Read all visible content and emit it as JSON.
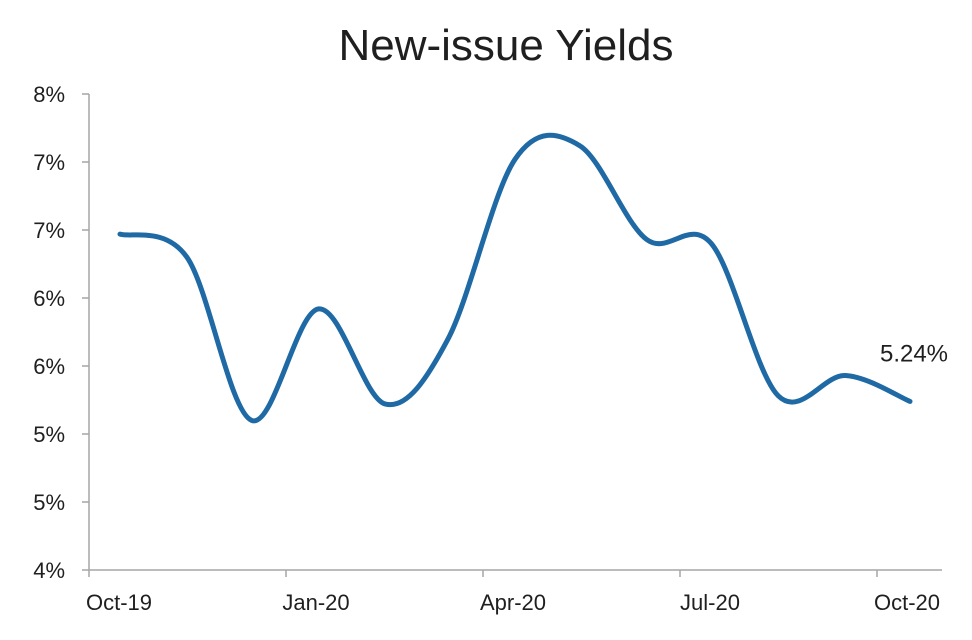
{
  "chart_data": {
    "type": "line",
    "title": "New-issue Yields",
    "xlabel": "",
    "ylabel": "",
    "x_tick_labels": [
      "Oct-19",
      "Jan-20",
      "Apr-20",
      "Jul-20",
      "Oct-20"
    ],
    "y_tick_labels": [
      "4%",
      "5%",
      "5%",
      "6%",
      "6%",
      "7%",
      "7%",
      "8%"
    ],
    "ylim": [
      4.0,
      7.5
    ],
    "y_ticks": [
      4.0,
      4.5,
      5.0,
      5.5,
      6.0,
      6.5,
      7.0,
      7.5
    ],
    "grid": false,
    "legend": "none",
    "series": [
      {
        "color": "#1f6aa5",
        "points": [
          {
            "x": "2019-10-15",
            "y": 6.47
          },
          {
            "x": "2019-11-15",
            "y": 6.3
          },
          {
            "x": "2019-12-15",
            "y": 5.1
          },
          {
            "x": "2020-01-15",
            "y": 5.92
          },
          {
            "x": "2020-02-15",
            "y": 5.22
          },
          {
            "x": "2020-03-15",
            "y": 5.7
          },
          {
            "x": "2020-04-15",
            "y": 7.02
          },
          {
            "x": "2020-05-15",
            "y": 7.12
          },
          {
            "x": "2020-06-15",
            "y": 6.43
          },
          {
            "x": "2020-07-15",
            "y": 6.4
          },
          {
            "x": "2020-08-15",
            "y": 5.28
          },
          {
            "x": "2020-09-15",
            "y": 5.43
          },
          {
            "x": "2020-10-15",
            "y": 5.24
          }
        ]
      }
    ],
    "annotations": [
      {
        "text": "5.24%",
        "x": "2020-10-15",
        "y": 5.24
      }
    ]
  }
}
